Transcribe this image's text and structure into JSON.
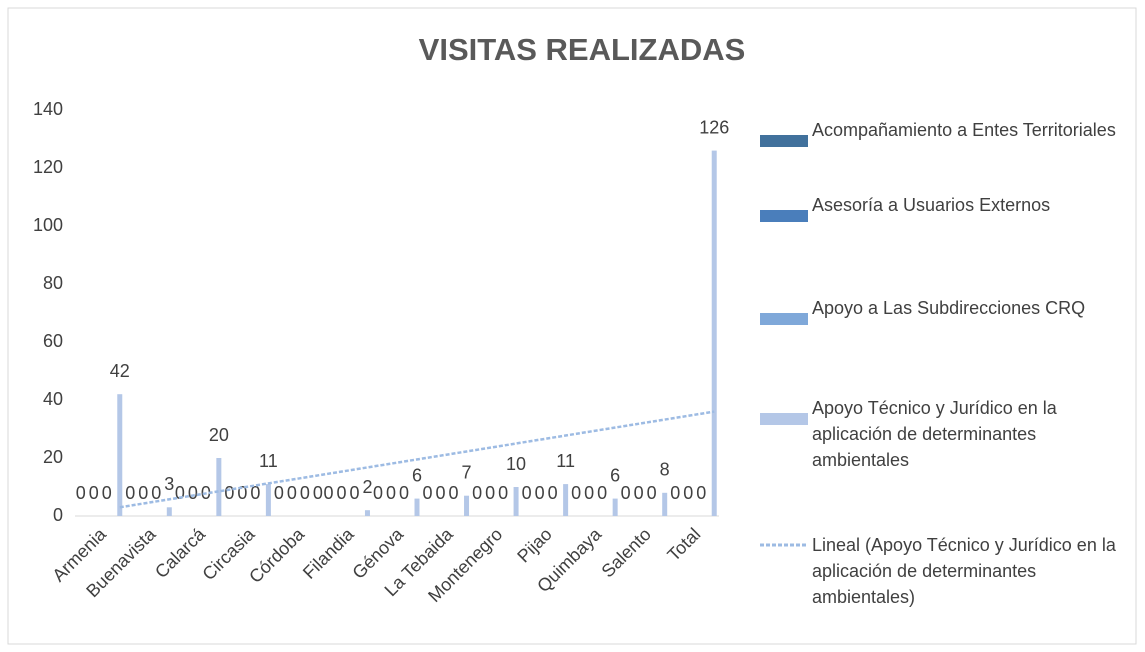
{
  "chart_data": {
    "type": "bar",
    "title": "VISITAS REALIZADAS",
    "categories": [
      "Armenia",
      "Buenavista",
      "Calarcá",
      "Circasia",
      "Córdoba",
      "Filandia",
      "Génova",
      "La Tebaida",
      "Montenegro",
      "Pijao",
      "Quimbaya",
      "Salento",
      "Total"
    ],
    "series": [
      {
        "name": "Acompañamiento a Entes Territoriales",
        "color": "#41719c",
        "values": [
          0,
          0,
          0,
          0,
          0,
          0,
          0,
          0,
          0,
          0,
          0,
          0,
          0
        ]
      },
      {
        "name": "Asesoría a Usuarios Externos",
        "color": "#4a7ebb",
        "values": [
          0,
          0,
          0,
          0,
          0,
          0,
          0,
          0,
          0,
          0,
          0,
          0,
          0
        ]
      },
      {
        "name": " Apoyo a Las Subdirecciones CRQ",
        "color": "#7fa8d9",
        "values": [
          0,
          0,
          0,
          0,
          0,
          0,
          0,
          0,
          0,
          0,
          0,
          0,
          0
        ]
      },
      {
        "name": "Apoyo Técnico y Jurídico en la aplicación de determinantes ambientales",
        "color": "#b4c7e7",
        "values": [
          42,
          3,
          20,
          11,
          0,
          2,
          6,
          7,
          10,
          11,
          6,
          8,
          126
        ]
      }
    ],
    "trendline": {
      "name": "Lineal (Apoyo Técnico y Jurídico en la aplicación de determinantes ambientales)",
      "color": "#9dbbe3",
      "values": [
        3,
        36
      ]
    },
    "ylim": [
      0,
      140
    ],
    "yticks": [
      0,
      20,
      40,
      60,
      80,
      100,
      120,
      140
    ],
    "grid": false
  }
}
